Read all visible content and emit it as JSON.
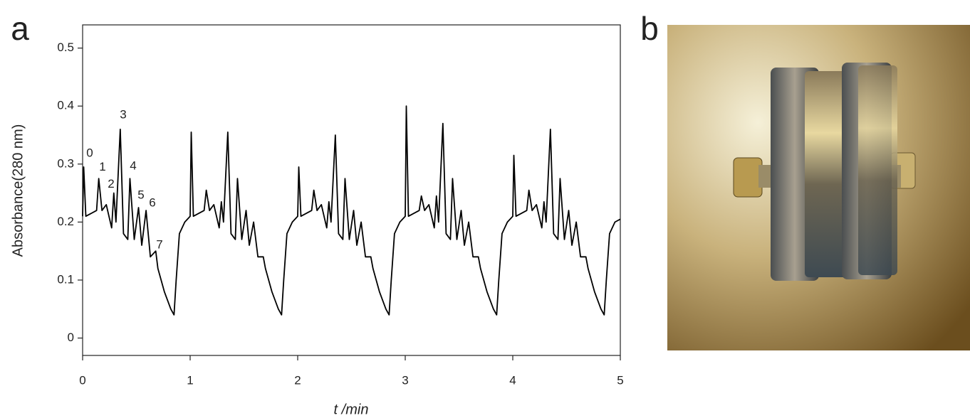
{
  "panel_labels": [
    "a",
    "b"
  ],
  "chart_data": {
    "type": "line",
    "x_label": "t /min",
    "y_label": "Absorbance(280 nm)",
    "xlim": [
      0,
      5
    ],
    "ylim": [
      -0.03,
      0.54
    ],
    "xticks": [
      0,
      1,
      2,
      3,
      4,
      5
    ],
    "yticks": [
      0,
      0.1,
      0.2,
      0.3,
      0.4,
      0.5
    ],
    "color": "#000000",
    "x": [
      0,
      0.01,
      0.03,
      0.13,
      0.15,
      0.18,
      0.22,
      0.27,
      0.29,
      0.31,
      0.35,
      0.38,
      0.42,
      0.44,
      0.48,
      0.52,
      0.55,
      0.59,
      0.63,
      0.68,
      0.7,
      0.76,
      0.82,
      0.85,
      0.87,
      0.9,
      0.95,
      1,
      1.01,
      1.03,
      1.13,
      1.15,
      1.18,
      1.22,
      1.27,
      1.29,
      1.31,
      1.35,
      1.38,
      1.42,
      1.44,
      1.48,
      1.52,
      1.55,
      1.59,
      1.63,
      1.68,
      1.7,
      1.76,
      1.82,
      1.85,
      1.87,
      1.9,
      1.95,
      2,
      2.01,
      2.03,
      2.13,
      2.15,
      2.18,
      2.22,
      2.27,
      2.29,
      2.31,
      2.35,
      2.38,
      2.42,
      2.44,
      2.48,
      2.52,
      2.55,
      2.59,
      2.63,
      2.68,
      2.7,
      2.76,
      2.82,
      2.85,
      2.87,
      2.9,
      2.95,
      3,
      3.01,
      3.03,
      3.13,
      3.15,
      3.18,
      3.22,
      3.27,
      3.29,
      3.31,
      3.35,
      3.38,
      3.42,
      3.44,
      3.48,
      3.52,
      3.55,
      3.59,
      3.63,
      3.68,
      3.7,
      3.76,
      3.82,
      3.85,
      3.87,
      3.9,
      3.95,
      4,
      4.01,
      4.03,
      4.13,
      4.15,
      4.18,
      4.22,
      4.27,
      4.29,
      4.31,
      4.35,
      4.38,
      4.42,
      4.44,
      4.48,
      4.52,
      4.55,
      4.59,
      4.63,
      4.68,
      4.7,
      4.76,
      4.82,
      4.85,
      4.87,
      4.9,
      4.95,
      5
    ],
    "values": [
      0.21,
      0.295,
      0.21,
      0.22,
      0.275,
      0.22,
      0.23,
      0.19,
      0.25,
      0.2,
      0.36,
      0.18,
      0.17,
      0.275,
      0.17,
      0.225,
      0.16,
      0.22,
      0.14,
      0.15,
      0.12,
      0.08,
      0.05,
      0.04,
      0.1,
      0.18,
      0.2,
      0.21,
      0.355,
      0.21,
      0.22,
      0.255,
      0.22,
      0.23,
      0.19,
      0.235,
      0.2,
      0.355,
      0.18,
      0.17,
      0.275,
      0.17,
      0.22,
      0.16,
      0.2,
      0.14,
      0.14,
      0.12,
      0.08,
      0.05,
      0.04,
      0.1,
      0.18,
      0.2,
      0.21,
      0.295,
      0.21,
      0.22,
      0.255,
      0.22,
      0.23,
      0.19,
      0.235,
      0.2,
      0.35,
      0.18,
      0.17,
      0.275,
      0.17,
      0.22,
      0.16,
      0.2,
      0.14,
      0.14,
      0.12,
      0.08,
      0.05,
      0.04,
      0.1,
      0.18,
      0.2,
      0.21,
      0.4,
      0.21,
      0.22,
      0.245,
      0.22,
      0.23,
      0.19,
      0.245,
      0.2,
      0.37,
      0.18,
      0.17,
      0.275,
      0.17,
      0.22,
      0.16,
      0.2,
      0.14,
      0.14,
      0.12,
      0.08,
      0.05,
      0.04,
      0.1,
      0.18,
      0.2,
      0.21,
      0.315,
      0.21,
      0.22,
      0.255,
      0.22,
      0.23,
      0.19,
      0.235,
      0.2,
      0.36,
      0.18,
      0.17,
      0.275,
      0.17,
      0.22,
      0.16,
      0.2,
      0.14,
      0.14,
      0.12,
      0.08,
      0.05,
      0.04,
      0.1,
      0.18,
      0.2,
      0.205
    ],
    "annotations": [
      {
        "text": "0",
        "x": 0.066,
        "y": 0.318
      },
      {
        "text": "1",
        "x": 0.185,
        "y": 0.294
      },
      {
        "text": "2",
        "x": 0.265,
        "y": 0.265
      },
      {
        "text": "3",
        "x": 0.377,
        "y": 0.384
      },
      {
        "text": "4",
        "x": 0.47,
        "y": 0.296
      },
      {
        "text": "5",
        "x": 0.543,
        "y": 0.246
      },
      {
        "text": "6",
        "x": 0.649,
        "y": 0.232
      },
      {
        "text": "7",
        "x": 0.715,
        "y": 0.16
      }
    ]
  }
}
